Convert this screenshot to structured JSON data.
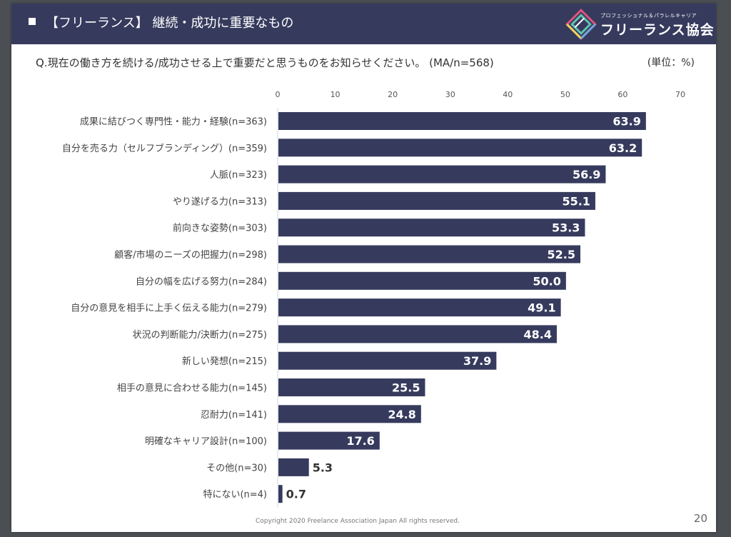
{
  "header": {
    "title": "【フリーランス】 継続・成功に重要なもの",
    "logo_sub": "プロフェッショナル＆パラレルキャリア",
    "logo_main": "フリーランス協会",
    "brand_color": "#363b5e"
  },
  "question": "Q.現在の働き方を続ける/成功させる上で重要だと思うものをお知らせください。 (MA/n=568)",
  "unit": "(単位：%)",
  "footer": {
    "copyright": "Copyright 2020 Freelance Association Japan  All rights reserved.",
    "page_number": "20"
  },
  "chart_data": {
    "type": "bar",
    "orientation": "horizontal",
    "title": "【フリーランス】 継続・成功に重要なもの",
    "xlabel": "",
    "ylabel": "",
    "xlim": [
      0,
      70
    ],
    "ticks": [
      0,
      10,
      20,
      30,
      40,
      50,
      60,
      70
    ],
    "tick_labels": [
      "0",
      "10",
      "20",
      "30",
      "40",
      "50",
      "60",
      "70"
    ],
    "grid": false,
    "bar_color": "#363b5e",
    "categories": [
      "成果に結びつく専門性・能力・経験(n=363)",
      "自分を売る力（セルフブランディング）(n=359)",
      "人脈(n=323)",
      "やり遂げる力(n=313)",
      "前向きな姿勢(n=303)",
      "顧客/市場のニーズの把握力(n=298)",
      "自分の幅を広げる努力(n=284)",
      "自分の意見を相手に上手く伝える能力(n=279)",
      "状況の判断能力/決断力(n=275)",
      "新しい発想(n=215)",
      "相手の意見に合わせる能力(n=145)",
      "忍耐力(n=141)",
      "明確なキャリア設計(n=100)",
      "その他(n=30)",
      "特にない(n=4)"
    ],
    "values": [
      63.9,
      63.2,
      56.9,
      55.1,
      53.3,
      52.5,
      50.0,
      49.1,
      48.4,
      37.9,
      25.5,
      24.8,
      17.6,
      5.3,
      0.7
    ],
    "value_labels": [
      "63.9",
      "63.2",
      "56.9",
      "55.1",
      "53.3",
      "52.5",
      "50.0",
      "49.1",
      "48.4",
      "37.9",
      "25.5",
      "24.8",
      "17.6",
      "5.3",
      "0.7"
    ]
  }
}
